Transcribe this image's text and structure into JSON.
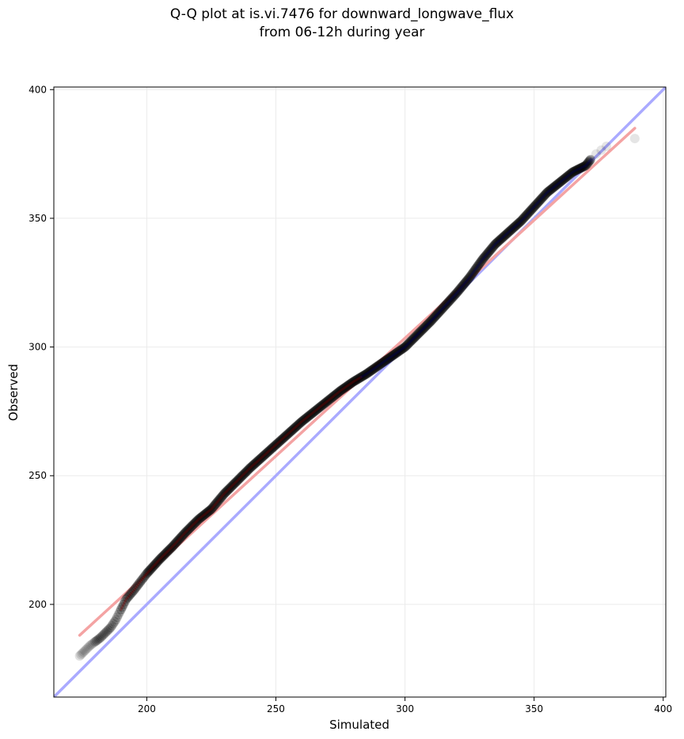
{
  "chart_data": {
    "type": "scatter",
    "title_line1": "Q-Q plot at is.vi.7476 for downward_longwave_flux",
    "title_line2": "from 06-12h during year",
    "xlabel": "Simulated",
    "ylabel": "Observed",
    "xlim": [
      164,
      401
    ],
    "ylim": [
      164,
      401
    ],
    "xticks": [
      200,
      250,
      300,
      350,
      400
    ],
    "yticks": [
      200,
      250,
      300,
      350,
      400
    ],
    "grid": true,
    "reference_line": {
      "x": [
        164,
        401
      ],
      "y": [
        164,
        401
      ],
      "color": "#aaaaff"
    },
    "fit_line": {
      "x": [
        174,
        389
      ],
      "y": [
        188,
        385
      ],
      "color": "#f4a3a3"
    },
    "quantile_curve": {
      "x": [
        174,
        176,
        178,
        180,
        182,
        184,
        186,
        188,
        190,
        192,
        195,
        200,
        205,
        210,
        215,
        220,
        225,
        230,
        235,
        240,
        245,
        250,
        255,
        260,
        265,
        270,
        275,
        280,
        285,
        290,
        295,
        300,
        305,
        310,
        315,
        320,
        325,
        330,
        335,
        340,
        345,
        350,
        355,
        360,
        365,
        370,
        372,
        374,
        376,
        378,
        389
      ],
      "y": [
        180,
        182,
        184,
        185.5,
        187,
        189,
        191,
        194,
        198,
        202,
        205.5,
        212,
        217.5,
        222.5,
        228,
        233,
        237,
        243,
        248,
        253,
        257.5,
        262,
        266.5,
        271,
        275,
        279,
        283,
        286.5,
        289.5,
        293,
        296.5,
        300,
        305,
        310,
        315.5,
        321,
        327,
        334,
        340,
        344.5,
        349,
        354.5,
        360,
        364,
        368,
        370.5,
        373,
        375,
        376.5,
        378,
        381
      ]
    },
    "point_color": "#000000",
    "blue_tint_x_range": [
      283,
      372
    ],
    "red_tint_x_range": [
      190,
      283
    ]
  }
}
